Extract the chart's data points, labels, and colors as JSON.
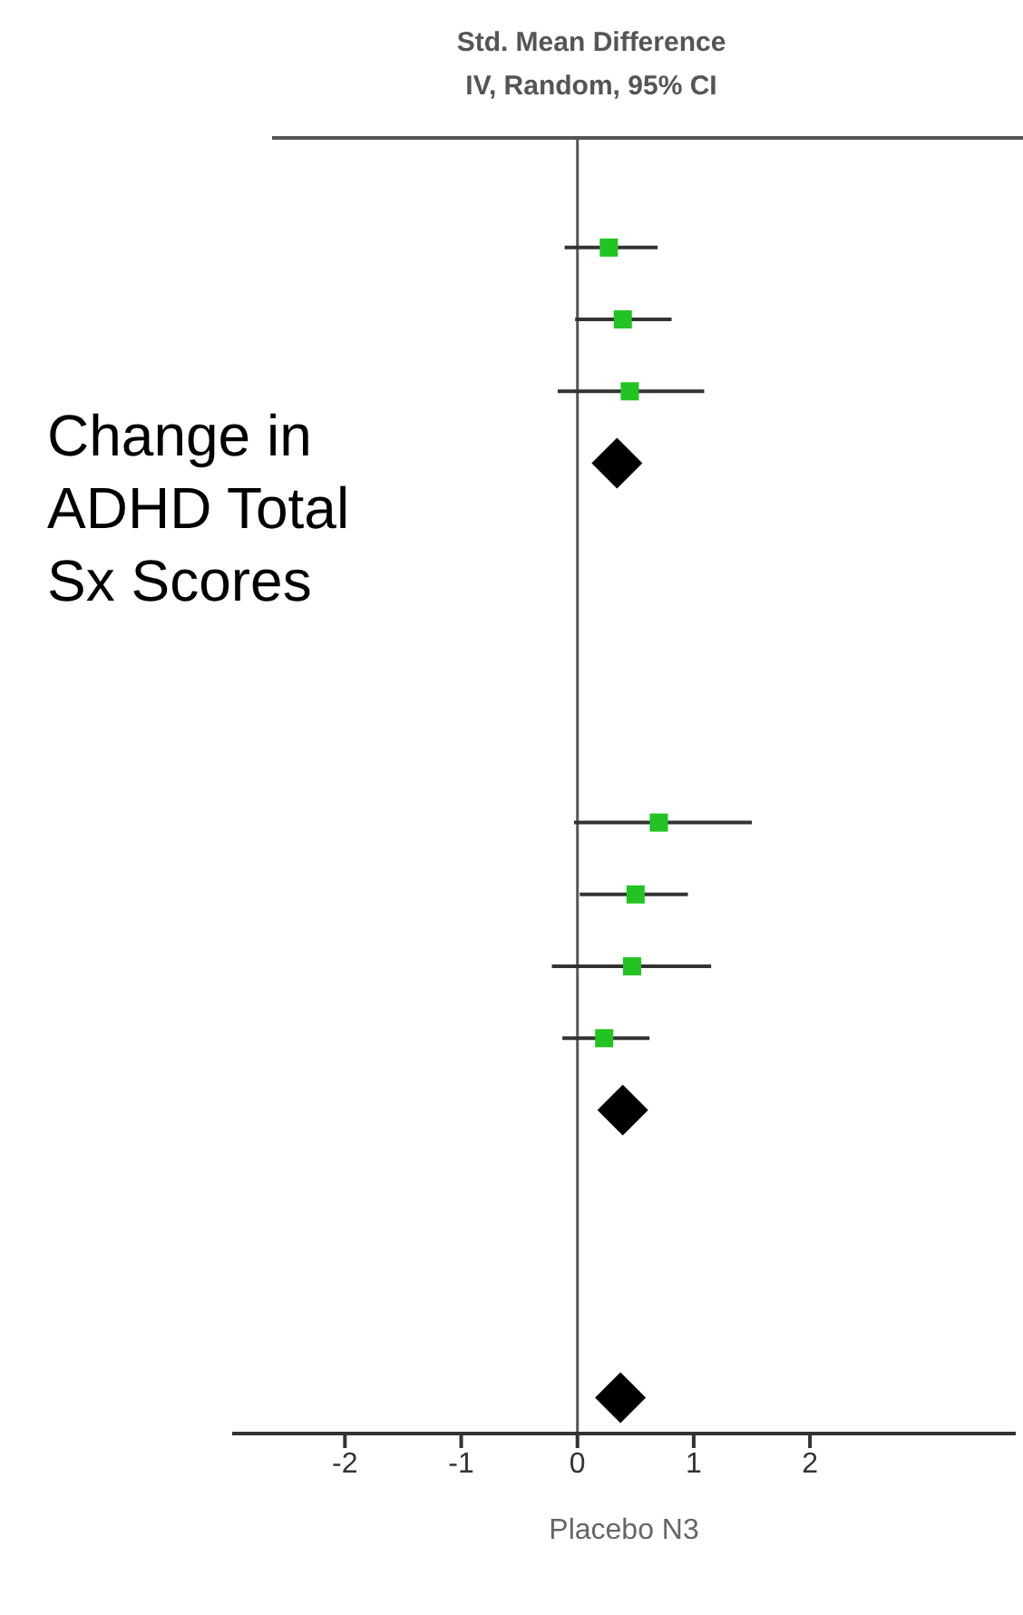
{
  "chart_data": {
    "type": "scatter",
    "orientation": "horizontal",
    "title": "Std. Mean Difference",
    "subtitle": "IV, Random, 95% CI",
    "xlabel": "Placebo N3",
    "annotations": [
      "Change in ADHD Total Sx Scores"
    ],
    "categories": [
      null,
      null,
      null,
      null,
      null,
      null,
      null,
      null,
      null,
      null,
      null,
      null,
      null,
      null,
      null,
      null,
      null,
      null
    ],
    "xlim": [
      -2.97,
      3.77
    ],
    "xticks": [
      -2,
      -1,
      0,
      1,
      2
    ],
    "tick_labels": "x",
    "grid": false,
    "ref_lines": [
      {
        "axis": "x",
        "value": 0,
        "color": "#555555"
      }
    ],
    "series": [
      {
        "type": "scatter",
        "marker": "square",
        "color": "#22c322",
        "values": [
          null,
          0.27,
          0.39,
          0.45,
          null,
          null,
          null,
          null,
          null,
          0.7,
          0.5,
          0.47,
          0.23,
          null,
          null,
          null,
          null,
          null
        ],
        "errors": [
          null,
          [
            -0.11,
            0.69
          ],
          [
            -0.02,
            0.81
          ],
          [
            -0.17,
            1.09
          ],
          null,
          null,
          null,
          null,
          null,
          [
            -0.03,
            1.5
          ],
          [
            0.02,
            0.95
          ],
          [
            -0.22,
            1.15
          ],
          [
            -0.13,
            0.62
          ],
          null,
          null,
          null,
          null,
          null
        ]
      },
      {
        "type": "scatter",
        "marker": "diamond",
        "color": "#000000",
        "values": [
          null,
          null,
          null,
          null,
          0.34,
          null,
          null,
          null,
          null,
          null,
          null,
          null,
          null,
          0.39,
          null,
          null,
          null,
          0.37
        ]
      }
    ]
  }
}
